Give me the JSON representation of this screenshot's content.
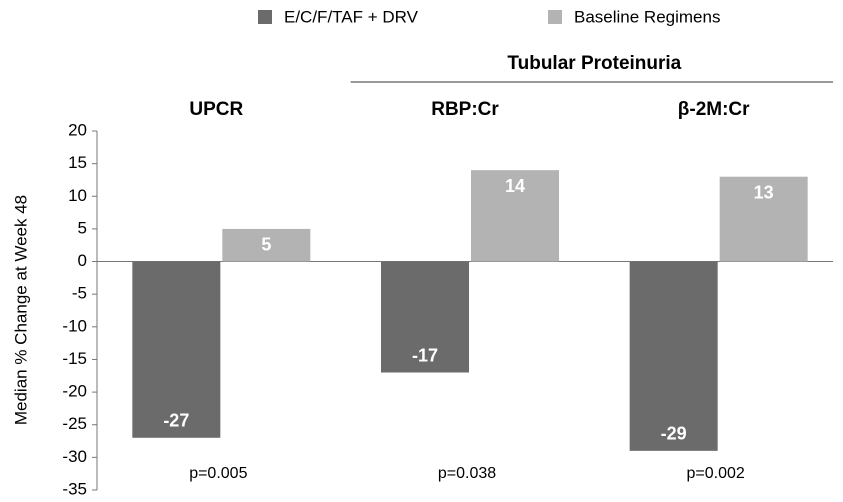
{
  "chart_data": {
    "type": "bar",
    "y_label": "Median % Change at Week 48",
    "group_label": "Tubular Proteinuria",
    "categories": [
      "UPCR",
      "RBP:Cr",
      "β-2M:Cr"
    ],
    "p_values": [
      "p=0.005",
      "p=0.038",
      "p=0.002"
    ],
    "series": [
      {
        "name": "E/C/F/TAF + DRV",
        "color": "#6b6b6b",
        "values": [
          -27,
          -17,
          -29
        ]
      },
      {
        "name": "Baseline Regimens",
        "color": "#b3b3b3",
        "values": [
          5,
          14,
          13
        ]
      }
    ],
    "ylim": [
      -35,
      20
    ],
    "yticks": [
      -35,
      -30,
      -25,
      -20,
      -15,
      -10,
      -5,
      0,
      5,
      10,
      15,
      20
    ],
    "grid": false
  }
}
